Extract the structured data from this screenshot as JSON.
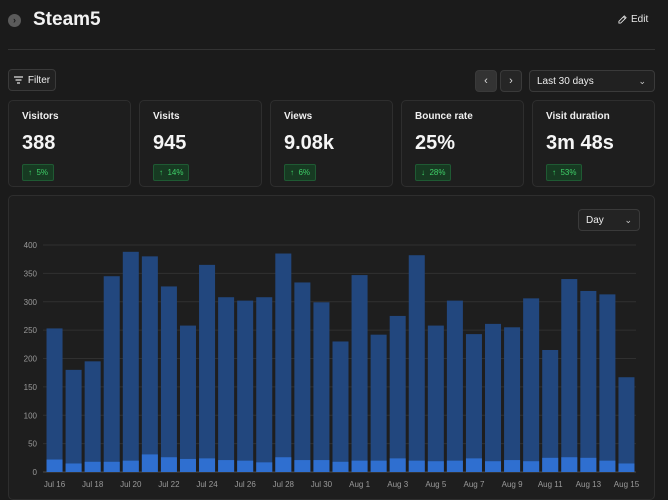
{
  "header": {
    "title": "Steam5",
    "edit_label": "Edit"
  },
  "toolbar": {
    "filter_label": "Filter",
    "prev_label": "‹",
    "next_label": "›",
    "range_label": "Last 30 days"
  },
  "stats": [
    {
      "label": "Visitors",
      "value": "388",
      "delta": "5%"
    },
    {
      "label": "Visits",
      "value": "945",
      "delta": "14%"
    },
    {
      "label": "Views",
      "value": "9.08k",
      "delta": "6%"
    },
    {
      "label": "Bounce rate",
      "value": "25%",
      "delta": "28%"
    },
    {
      "label": "Visit duration",
      "value": "3m 48s",
      "delta": "53%"
    }
  ],
  "chart": {
    "interval_label": "Day"
  },
  "colors": {
    "background": "#1b1b1b",
    "bar_views": "#22477e",
    "bar_visitors": "#2f6fd0",
    "delta_text": "#3fcf68",
    "delta_bg": "#173a22"
  },
  "chart_data": {
    "type": "bar",
    "categories": [
      "Jul 16",
      "Jul 17",
      "Jul 18",
      "Jul 19",
      "Jul 20",
      "Jul 21",
      "Jul 22",
      "Jul 23",
      "Jul 24",
      "Jul 25",
      "Jul 26",
      "Jul 27",
      "Jul 28",
      "Jul 29",
      "Jul 30",
      "Jul 31",
      "Aug 1",
      "Aug 2",
      "Aug 3",
      "Aug 4",
      "Aug 5",
      "Aug 6",
      "Aug 7",
      "Aug 8",
      "Aug 9",
      "Aug 10",
      "Aug 11",
      "Aug 12",
      "Aug 13",
      "Aug 14",
      "Aug 15"
    ],
    "tick_labels": [
      "Jul 16",
      "Jul 18",
      "Jul 20",
      "Jul 22",
      "Jul 24",
      "Jul 26",
      "Jul 28",
      "Jul 30",
      "Aug 1",
      "Aug 3",
      "Aug 5",
      "Aug 7",
      "Aug 9",
      "Aug 11",
      "Aug 13",
      "Aug 15"
    ],
    "series": [
      {
        "values": [
          253,
          180,
          195,
          345,
          388,
          380,
          327,
          258,
          365,
          308,
          302,
          308,
          385,
          334,
          299,
          230,
          347,
          242,
          275,
          382,
          258,
          302,
          243,
          261,
          255,
          306,
          215,
          340,
          319,
          313,
          167
        ]
      },
      {
        "values": [
          22,
          15,
          18,
          18,
          20,
          31,
          26,
          23,
          24,
          21,
          20,
          17,
          26,
          21,
          21,
          18,
          20,
          20,
          24,
          20,
          19,
          20,
          24,
          19,
          21,
          19,
          25,
          26,
          25,
          20,
          15
        ]
      }
    ],
    "ylim": [
      0,
      400
    ],
    "yticks": [
      0,
      50,
      100,
      150,
      200,
      250,
      300,
      350,
      400
    ],
    "grid": true
  }
}
